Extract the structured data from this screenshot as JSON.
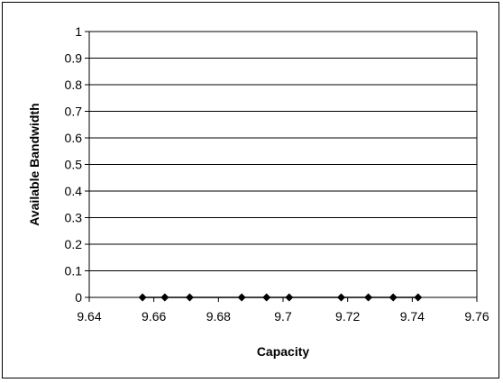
{
  "chart_data": {
    "type": "scatter",
    "title": "",
    "xlabel": "Capacity",
    "ylabel": "Available Bandwidth",
    "xlim": [
      9.64,
      9.76
    ],
    "ylim": [
      0,
      1
    ],
    "x_ticks": [
      "9.64",
      "9.66",
      "9.68",
      "9.7",
      "9.72",
      "9.74",
      "9.76"
    ],
    "y_ticks": [
      "0",
      "0.1",
      "0.2",
      "0.3",
      "0.4",
      "0.5",
      "0.6",
      "0.7",
      "0.8",
      "0.9",
      "1"
    ],
    "grid": "horizontal",
    "legend": "none",
    "series": [
      {
        "marker": "diamond",
        "color": "#000000",
        "connected": true,
        "points": [
          {
            "x": 9.6565,
            "y": 0
          },
          {
            "x": 9.6634,
            "y": 0
          },
          {
            "x": 9.6711,
            "y": 0
          },
          {
            "x": 9.6872,
            "y": 0
          },
          {
            "x": 9.6949,
            "y": 0
          },
          {
            "x": 9.7019,
            "y": 0
          },
          {
            "x": 9.718,
            "y": 0
          },
          {
            "x": 9.7264,
            "y": 0
          },
          {
            "x": 9.7341,
            "y": 0
          },
          {
            "x": 9.7418,
            "y": 0
          }
        ]
      }
    ]
  }
}
